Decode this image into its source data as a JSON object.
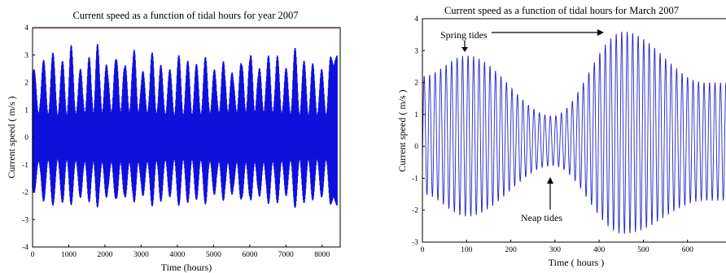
{
  "chart_data": [
    {
      "type": "line",
      "title": "Current speed as a function of tidal hours for year 2007",
      "xlabel": "Time (hours)",
      "ylabel": "Current speed ( m/s )",
      "xlim": [
        0,
        8500
      ],
      "ylim": [
        -4,
        4
      ],
      "xticks": [
        "0",
        "1000",
        "2000",
        "3000",
        "4000",
        "5000",
        "6000",
        "7000",
        "8000"
      ],
      "yticks": [
        "4",
        "3",
        "2",
        "1",
        "0",
        "-1",
        "-2",
        "-3",
        "-4"
      ],
      "line_color": "#1010dd",
      "series": [
        {
          "description": "hourly tidal current speed over one year (dense oscillation)",
          "envelope_peaks_x": [
            30,
            300,
            560,
            830,
            1070,
            1330,
            1570,
            1800,
            2050,
            2310,
            2550,
            2800,
            3040,
            3300,
            3540,
            3790,
            4040,
            4290,
            4530,
            4780,
            5030,
            5280,
            5520,
            5770,
            6020,
            6260,
            6510,
            6760,
            7000,
            7250,
            7500,
            7740,
            7990,
            8240
          ],
          "envelope_upper": [
            2.7,
            2.9,
            3.1,
            2.8,
            3.4,
            2.6,
            3.1,
            3.6,
            2.9,
            3.3,
            3.0,
            3.5,
            2.6,
            3.2,
            2.7,
            2.5,
            3.0,
            2.8,
            2.7,
            3.0,
            2.6,
            3.0,
            2.6,
            3.1,
            3.4,
            2.8,
            3.2,
            3.1,
            2.6,
            3.3,
            2.8,
            2.7,
            2.5,
            3.0
          ],
          "envelope_lower": [
            -2.2,
            -2.4,
            -2.5,
            -2.4,
            -2.5,
            -2.3,
            -2.5,
            -2.7,
            -2.4,
            -2.6,
            -2.5,
            -2.6,
            -2.3,
            -2.6,
            -2.4,
            -2.2,
            -2.5,
            -2.4,
            -2.3,
            -2.5,
            -2.2,
            -2.5,
            -2.3,
            -2.6,
            -2.6,
            -2.4,
            -2.6,
            -2.5,
            -2.2,
            -2.6,
            -2.4,
            -2.3,
            -2.2,
            -2.5
          ],
          "trough_upper": 0.9,
          "trough_lower": -0.9
        }
      ]
    },
    {
      "type": "line",
      "title": "Current speed as a function of tidal hours for March 2007",
      "xlabel": "Time ( hours )",
      "ylabel": "Current speed ( m/s )",
      "xlim": [
        0,
        700
      ],
      "ylim": [
        -3,
        4
      ],
      "xticks": [
        "0",
        "100",
        "200",
        "300",
        "400",
        "500",
        "600",
        "700"
      ],
      "yticks": [
        "4",
        "3",
        "2",
        "1",
        "0",
        "-1",
        "-2",
        "-3"
      ],
      "line_color": "#2424c8",
      "series": [
        {
          "description": "semi-diurnal oscillation with spring-neap modulation",
          "period_hours": 12.42,
          "phase_hours": 4,
          "envelope_x": [
            0,
            100,
            295,
            455,
            640
          ],
          "envelope_upper": [
            2.2,
            2.85,
            0.95,
            3.6,
            2.0
          ],
          "envelope_lower": [
            -1.5,
            -2.2,
            -0.6,
            -2.75,
            -1.7
          ]
        }
      ],
      "annotations": [
        {
          "text": "Spring tides",
          "target_x": [
            100,
            455
          ]
        },
        {
          "text": "Neap tides",
          "target_x": [
            295
          ]
        }
      ]
    }
  ]
}
